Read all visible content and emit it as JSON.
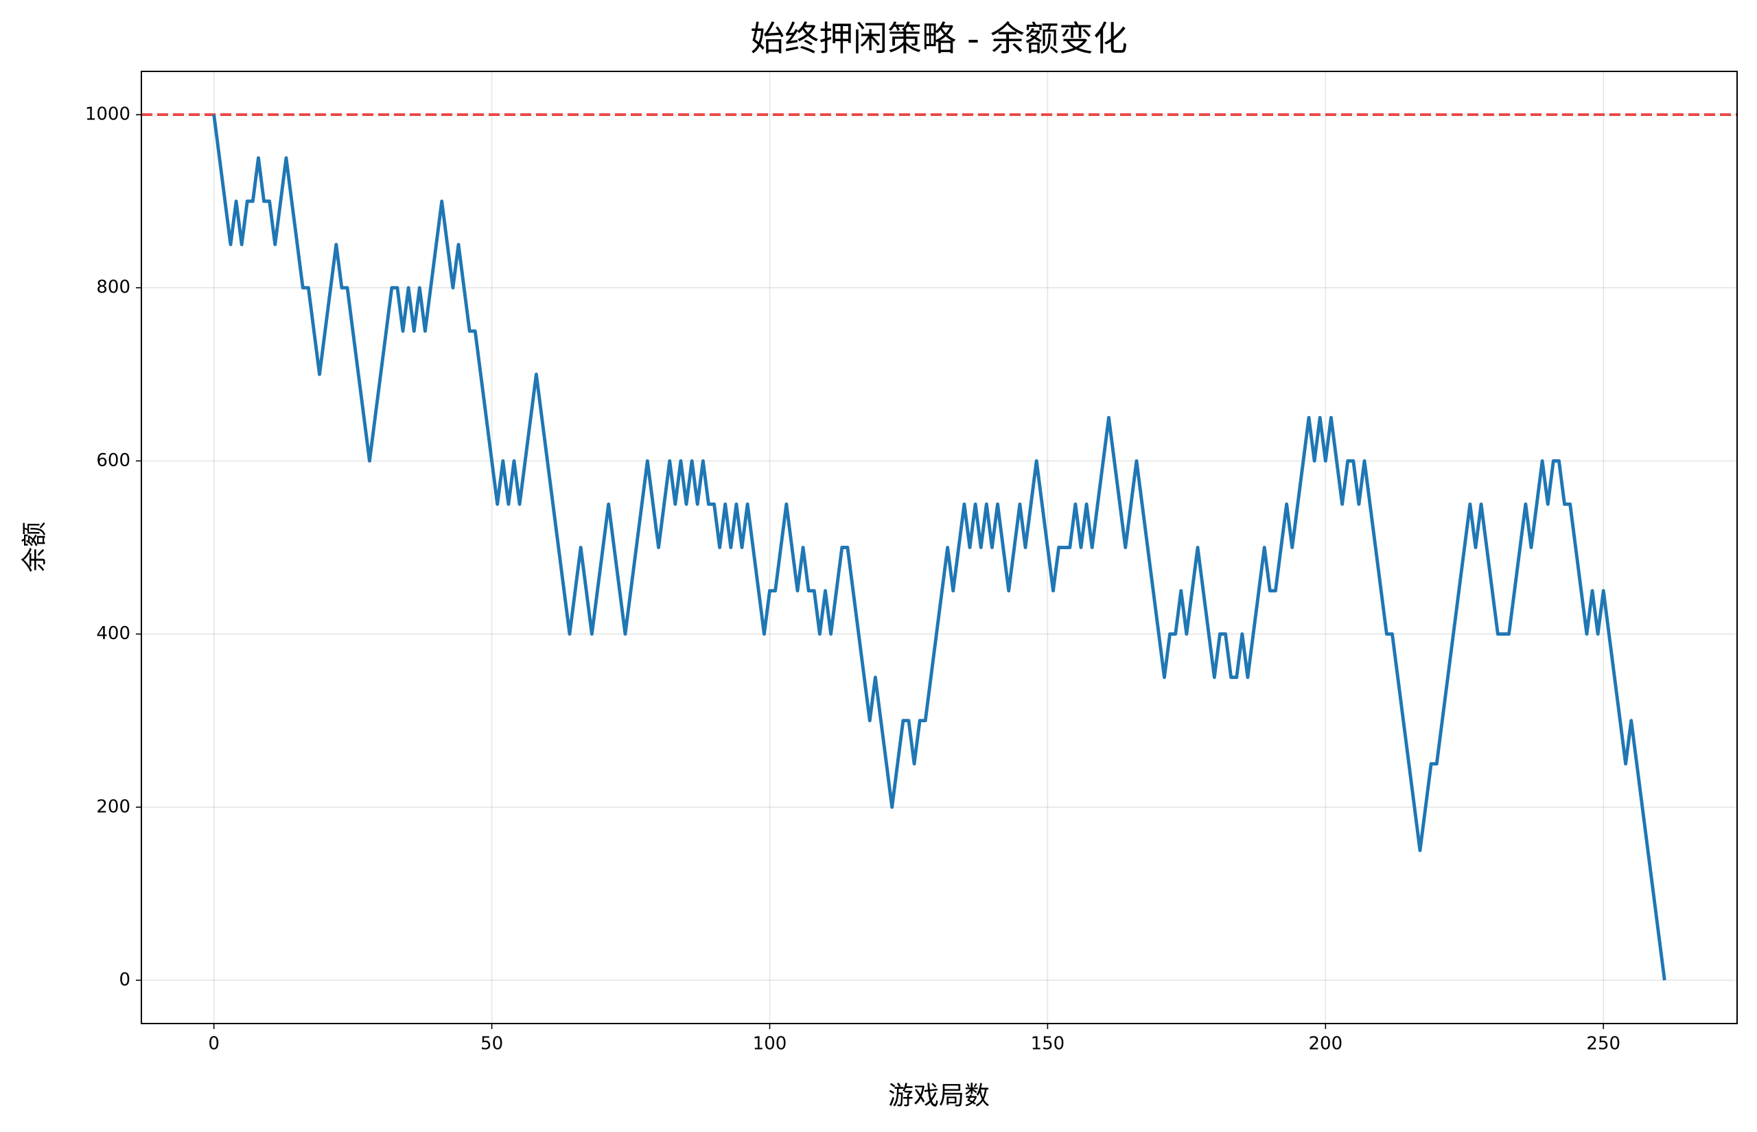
{
  "chart_data": {
    "type": "line",
    "title": "始终押闲策略 - 余额变化",
    "xlabel": "游戏局数",
    "ylabel": "余额",
    "x": [
      0,
      1,
      2,
      3,
      4,
      5,
      6,
      7,
      8,
      9,
      10,
      11,
      12,
      13,
      14,
      15,
      16,
      17,
      18,
      19,
      20,
      21,
      22,
      23,
      24,
      25,
      26,
      27,
      28,
      29,
      30,
      31,
      32,
      33,
      34,
      35,
      36,
      37,
      38,
      39,
      40,
      41,
      42,
      43,
      44,
      45,
      46,
      47,
      48,
      49,
      50,
      51,
      52,
      53,
      54,
      55,
      56,
      57,
      58,
      59,
      60,
      61,
      62,
      63,
      64,
      65,
      66,
      67,
      68,
      69,
      70,
      71,
      72,
      73,
      74,
      75,
      76,
      77,
      78,
      79,
      80,
      81,
      82,
      83,
      84,
      85,
      86,
      87,
      88,
      89,
      90,
      91,
      92,
      93,
      94,
      95,
      96,
      97,
      98,
      99,
      100,
      101,
      102,
      103,
      104,
      105,
      106,
      107,
      108,
      109,
      110,
      111,
      112,
      113,
      114,
      115,
      116,
      117,
      118,
      119,
      120,
      121,
      122,
      123,
      124,
      125,
      126,
      127,
      128,
      129,
      130,
      131,
      132,
      133,
      134,
      135,
      136,
      137,
      138,
      139,
      140,
      141,
      142,
      143,
      144,
      145,
      146,
      147,
      148,
      149,
      150,
      151,
      152,
      153,
      154,
      155,
      156,
      157,
      158,
      159,
      160,
      161,
      162,
      163,
      164,
      165,
      166,
      167,
      168,
      169,
      170,
      171,
      172,
      173,
      174,
      175,
      176,
      177,
      178,
      179,
      180,
      181,
      182,
      183,
      184,
      185,
      186,
      187,
      188,
      189,
      190,
      191,
      192,
      193,
      194,
      195,
      196,
      197,
      198,
      199,
      200,
      201,
      202,
      203,
      204,
      205,
      206,
      207,
      208,
      209,
      210,
      211,
      212,
      213,
      214,
      215,
      216,
      217,
      218,
      219,
      220,
      221,
      222,
      223,
      224,
      225,
      226,
      227,
      228,
      229,
      230,
      231,
      232,
      233,
      234,
      235,
      236,
      237,
      238,
      239,
      240,
      241,
      242,
      243,
      244,
      245,
      246,
      247,
      248,
      249,
      250,
      251,
      252,
      253,
      254,
      255,
      256,
      257,
      258,
      259,
      260,
      261
    ],
    "series": [
      {
        "color": "#1f77b4",
        "values": [
          1000,
          950,
          900,
          850,
          900,
          850,
          900,
          900,
          950,
          900,
          900,
          850,
          900,
          950,
          900,
          850,
          800,
          800,
          750,
          700,
          750,
          800,
          850,
          800,
          800,
          750,
          700,
          650,
          600,
          650,
          700,
          750,
          800,
          800,
          750,
          800,
          750,
          800,
          750,
          800,
          850,
          900,
          850,
          800,
          850,
          800,
          750,
          750,
          700,
          650,
          600,
          550,
          600,
          550,
          600,
          550,
          600,
          650,
          700,
          650,
          600,
          550,
          500,
          450,
          400,
          450,
          500,
          450,
          400,
          450,
          500,
          550,
          500,
          450,
          400,
          450,
          500,
          550,
          600,
          550,
          500,
          550,
          600,
          550,
          600,
          550,
          600,
          550,
          600,
          550,
          550,
          500,
          550,
          500,
          550,
          500,
          550,
          500,
          450,
          400,
          450,
          450,
          500,
          550,
          500,
          450,
          500,
          450,
          450,
          400,
          450,
          400,
          450,
          500,
          500,
          450,
          400,
          350,
          300,
          350,
          300,
          250,
          200,
          250,
          300,
          300,
          250,
          300,
          300,
          350,
          400,
          450,
          500,
          450,
          500,
          550,
          500,
          550,
          500,
          550,
          500,
          550,
          500,
          450,
          500,
          550,
          500,
          550,
          600,
          550,
          500,
          450,
          500,
          500,
          500,
          550,
          500,
          550,
          500,
          550,
          600,
          650,
          600,
          550,
          500,
          550,
          600,
          550,
          500,
          450,
          400,
          350,
          400,
          400,
          450,
          400,
          450,
          500,
          450,
          400,
          350,
          400,
          400,
          350,
          350,
          400,
          350,
          400,
          450,
          500,
          450,
          450,
          500,
          550,
          500,
          550,
          600,
          650,
          600,
          650,
          600,
          650,
          600,
          550,
          600,
          600,
          550,
          600,
          550,
          500,
          450,
          400,
          400,
          350,
          300,
          250,
          200,
          150,
          200,
          250,
          250,
          300,
          350,
          400,
          450,
          500,
          550,
          500,
          550,
          500,
          450,
          400,
          400,
          400,
          450,
          500,
          550,
          500,
          550,
          600,
          550,
          600,
          600,
          550,
          550,
          500,
          450,
          400,
          450,
          400,
          450,
          400,
          350,
          300,
          250,
          300,
          250,
          200,
          150,
          100,
          50,
          0
        ]
      }
    ],
    "reference_line": {
      "value": 1000,
      "color": "#e8413f",
      "style": "dashed"
    },
    "xlim": [
      -13.05,
      274.05
    ],
    "xticks": [
      0,
      50,
      100,
      150,
      200,
      250
    ],
    "ylim": [
      -50,
      1050
    ],
    "yticks": [
      0,
      200,
      400,
      600,
      800,
      1000
    ],
    "grid": true
  }
}
